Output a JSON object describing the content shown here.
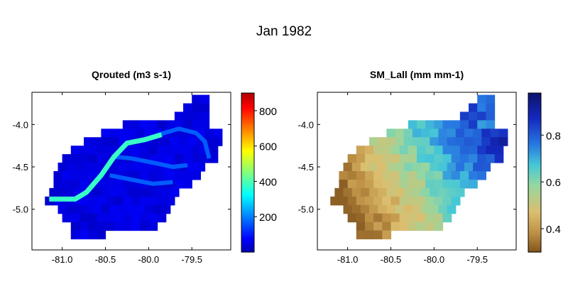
{
  "figure_title": "Jan 1982",
  "chart_data": [
    {
      "type": "heatmap",
      "title": "Qrouted (m3 s-1)",
      "xlabel": "",
      "ylabel": "",
      "x_ticks": [
        -81.0,
        -80.5,
        -80.0,
        -79.5
      ],
      "x_tick_labels": [
        "-81.0",
        "-80.5",
        "-80.0",
        "-79.5"
      ],
      "y_ticks": [
        -4.0,
        -4.5,
        -5.0
      ],
      "y_tick_labels": [
        "-4.0",
        "-4.5",
        "-5.0"
      ],
      "xlim": [
        -81.35,
        -79.05
      ],
      "ylim": [
        -5.48,
        -3.62
      ],
      "colormap": "jet",
      "colorbar": {
        "min": 0,
        "max": 900,
        "ticks": [
          200,
          400,
          600,
          800
        ],
        "tick_labels": [
          "200",
          "400",
          "600",
          "800"
        ]
      },
      "basin_value": 45,
      "main_channel_value": 380,
      "tributary_value": 165,
      "main_channel": [
        [
          -81.15,
          -4.88
        ],
        [
          -80.85,
          -4.88
        ],
        [
          -80.72,
          -4.8
        ],
        [
          -80.55,
          -4.6
        ],
        [
          -80.4,
          -4.38
        ],
        [
          -80.25,
          -4.22
        ],
        [
          -80.05,
          -4.18
        ],
        [
          -79.85,
          -4.12
        ]
      ],
      "tributaries": [
        [
          [
            -80.4,
            -4.38
          ],
          [
            -80.2,
            -4.4
          ],
          [
            -79.95,
            -4.45
          ],
          [
            -79.72,
            -4.5
          ],
          [
            -79.55,
            -4.48
          ]
        ],
        [
          [
            -80.45,
            -4.6
          ],
          [
            -80.2,
            -4.65
          ],
          [
            -79.95,
            -4.7
          ],
          [
            -79.72,
            -4.68
          ]
        ],
        [
          [
            -80.05,
            -4.18
          ],
          [
            -79.82,
            -4.1
          ],
          [
            -79.65,
            -4.05
          ],
          [
            -79.45,
            -4.1
          ],
          [
            -79.35,
            -4.2
          ],
          [
            -79.3,
            -4.4
          ]
        ]
      ]
    },
    {
      "type": "heatmap",
      "title": "SM_Lall (mm mm-1)",
      "xlabel": "",
      "ylabel": "",
      "x_ticks": [
        -81.0,
        -80.5,
        -80.0,
        -79.5
      ],
      "x_tick_labels": [
        "-81.0",
        "-80.5",
        "-80.0",
        "-79.5"
      ],
      "y_ticks": [
        -4.0,
        -4.5,
        -5.0
      ],
      "y_tick_labels": [
        "-4.0",
        "-4.5",
        "-5.0"
      ],
      "xlim": [
        -81.35,
        -79.05
      ],
      "ylim": [
        -5.48,
        -3.62
      ],
      "colormap": "roma-like (brown-yellow-cyan-blue)",
      "colorbar": {
        "min": 0.3,
        "max": 0.98,
        "ticks": [
          0.4,
          0.6,
          0.8
        ],
        "tick_labels": [
          "0.4",
          "0.6",
          "0.8"
        ]
      },
      "value_range_observed": [
        0.32,
        0.97
      ],
      "gradient": "dry (~0.35) in south-west lowlands, rising to ~0.9 in the eastern highlands"
    }
  ]
}
